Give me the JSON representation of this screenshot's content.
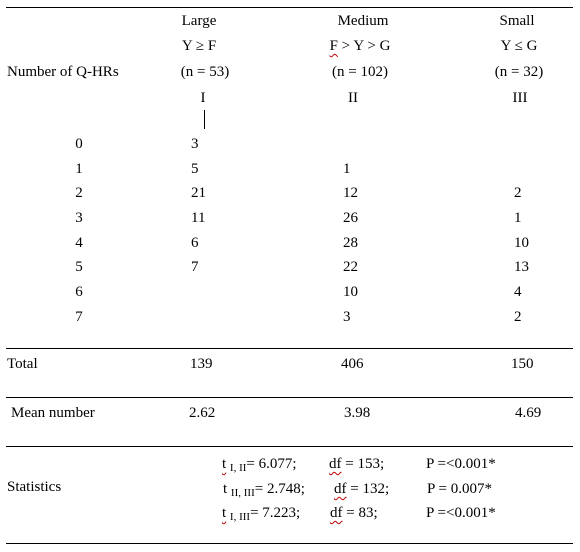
{
  "columns": [
    {
      "size": "Large",
      "criterion": "Y ≥ F",
      "n": "(n = 53)",
      "roman": "I"
    },
    {
      "size": "Medium",
      "criterion_pre": "F",
      "criterion_post": " > Y > G",
      "n": "(n = 102)",
      "roman": "II"
    },
    {
      "size": "Small",
      "criterion": "Y ≤ G",
      "n": "(n = 32)",
      "roman": "III"
    }
  ],
  "row_header": "Number of Q-HRs",
  "rows": [
    {
      "label": "0",
      "large": "3",
      "medium": "",
      "small": ""
    },
    {
      "label": "1",
      "large": "5",
      "medium": "1",
      "small": ""
    },
    {
      "label": "2",
      "large": "21",
      "medium": "12",
      "small": "2"
    },
    {
      "label": "3",
      "large": "11",
      "medium": "26",
      "small": "1"
    },
    {
      "label": "4",
      "large": "6",
      "medium": "28",
      "small": "10"
    },
    {
      "label": "5",
      "large": "7",
      "medium": "22",
      "small": "13"
    },
    {
      "label": "6",
      "large": "",
      "medium": "10",
      "small": "4"
    },
    {
      "label": "7",
      "large": "",
      "medium": "3",
      "small": "2"
    }
  ],
  "total": {
    "label": "Total",
    "large": "139",
    "medium": "406",
    "small": "150"
  },
  "mean": {
    "label": "Mean number",
    "large": "2.62",
    "medium": "3.98",
    "small": "4.69"
  },
  "statistics": {
    "label": "Statistics",
    "lines": [
      {
        "t": "t",
        "sub": "I, II",
        "value": "= 6.077;",
        "df": "df",
        "df_value": " = 153;",
        "p": "P =<0.001*"
      },
      {
        "t": "t",
        "sub": "II, III",
        "value": "= 2.748;",
        "df": "df",
        "df_value": " = 132;",
        "p": "P = 0.007*"
      },
      {
        "t": "t",
        "sub": "I, III",
        "value": "=  7.223;",
        "df": "df",
        "df_value": " = 83;",
        "p": "P =<0.001*"
      }
    ]
  }
}
